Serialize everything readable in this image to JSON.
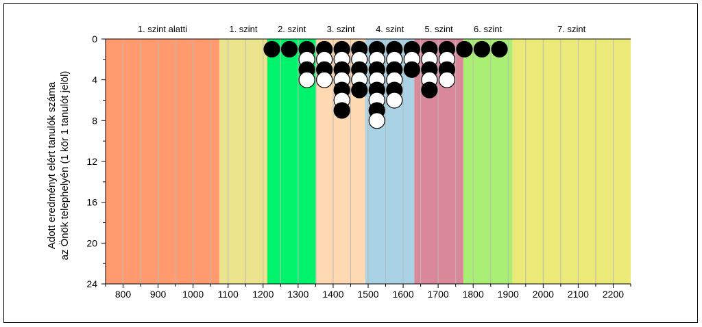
{
  "chart_data": {
    "type": "scatter",
    "ylabel_line1": "Adott eredményt elért tanulók száma",
    "ylabel_line2": "az Önök telephelyén (1 kör 1 tanulót jelöl)",
    "xlim": [
      750,
      2250
    ],
    "ylim": [
      0,
      24
    ],
    "x_ticks": [
      "800",
      "900",
      "1000",
      "1100",
      "1200",
      "1300",
      "1400",
      "1500",
      "1600",
      "1700",
      "1800",
      "1900",
      "2000",
      "2100",
      "2200"
    ],
    "y_ticks": [
      "0",
      "4",
      "8",
      "12",
      "16",
      "20",
      "24"
    ],
    "grid": "vertical, every 50",
    "levels": [
      {
        "label": "1. szint alatti",
        "from": 750,
        "to": 1075,
        "color": "#ff9b6e"
      },
      {
        "label": "1. szint",
        "from": 1075,
        "to": 1212,
        "color": "#ebe48c"
      },
      {
        "label": "2. szint",
        "from": 1212,
        "to": 1352,
        "color": "#00f36a"
      },
      {
        "label": "3. szint",
        "from": 1352,
        "to": 1492,
        "color": "#ffd9b2"
      },
      {
        "label": "4. szint",
        "from": 1492,
        "to": 1632,
        "color": "#a9d3e4"
      },
      {
        "label": "5. szint",
        "from": 1632,
        "to": 1772,
        "color": "#d9889a"
      },
      {
        "label": "6. szint",
        "from": 1772,
        "to": 1912,
        "color": "#a9ef74"
      },
      {
        "label": "7. szint",
        "from": 1912,
        "to": 2250,
        "color": "#ebea78"
      }
    ],
    "marker_colors": {
      "filled": "#000000",
      "empty": "#ffffff"
    },
    "columns": [
      {
        "x": 1225,
        "counts": [
          "filled"
        ]
      },
      {
        "x": 1275,
        "counts": [
          "filled"
        ]
      },
      {
        "x": 1325,
        "counts": [
          "filled",
          "empty",
          "filled",
          "empty"
        ]
      },
      {
        "x": 1375,
        "counts": [
          "filled",
          "empty",
          "filled",
          "empty"
        ]
      },
      {
        "x": 1425,
        "counts": [
          "filled",
          "empty",
          "filled",
          "empty",
          "filled",
          "empty",
          "filled"
        ]
      },
      {
        "x": 1475,
        "counts": [
          "filled",
          "empty",
          "filled",
          "empty",
          "filled"
        ]
      },
      {
        "x": 1525,
        "counts": [
          "filled",
          "empty",
          "filled",
          "empty",
          "filled",
          "empty",
          "filled",
          "empty"
        ]
      },
      {
        "x": 1575,
        "counts": [
          "filled",
          "empty",
          "filled",
          "empty",
          "filled",
          "empty"
        ]
      },
      {
        "x": 1625,
        "counts": [
          "filled",
          "empty",
          "filled"
        ]
      },
      {
        "x": 1675,
        "counts": [
          "filled",
          "empty",
          "filled",
          "empty",
          "filled"
        ]
      },
      {
        "x": 1725,
        "counts": [
          "filled",
          "empty",
          "filled",
          "empty"
        ]
      },
      {
        "x": 1775,
        "counts": [
          "filled"
        ]
      },
      {
        "x": 1825,
        "counts": [
          "filled"
        ]
      },
      {
        "x": 1875,
        "counts": [
          "filled"
        ]
      }
    ]
  }
}
